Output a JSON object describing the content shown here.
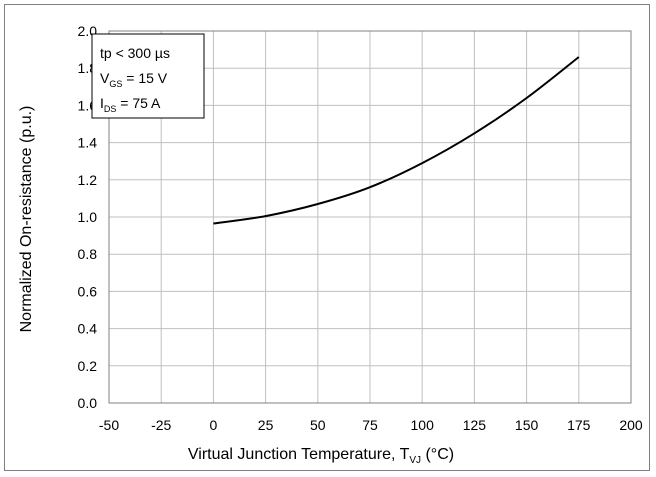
{
  "chart_data": {
    "type": "line",
    "xlabel": {
      "main": "Virtual Junction Temperature, T",
      "sub": "VJ",
      "tail": " (°C)"
    },
    "ylabel": "Normalized On-resistance (p.u.)",
    "xlim": [
      -50,
      200
    ],
    "ylim": [
      0,
      2.0
    ],
    "x_ticks": [
      "-50",
      "-25",
      "0",
      "25",
      "50",
      "75",
      "100",
      "125",
      "150",
      "175",
      "200"
    ],
    "y_ticks": [
      "0.0",
      "0.2",
      "0.4",
      "0.6",
      "0.8",
      "1.0",
      "1.2",
      "1.4",
      "1.6",
      "1.8",
      "2.0"
    ],
    "grid": true,
    "legend": "none",
    "annotation": {
      "line1": "tp < 300 µs",
      "line2": {
        "main": "V",
        "sub": "GS",
        "tail": " = 15 V"
      },
      "line3": {
        "main": "I",
        "sub": "DS",
        "tail": " = 75 A"
      }
    },
    "series": [
      {
        "color": "#000000",
        "x": [
          0,
          25,
          50,
          75,
          100,
          125,
          150,
          175
        ],
        "y": [
          0.965,
          1.005,
          1.07,
          1.16,
          1.29,
          1.45,
          1.64,
          1.86
        ]
      }
    ]
  }
}
